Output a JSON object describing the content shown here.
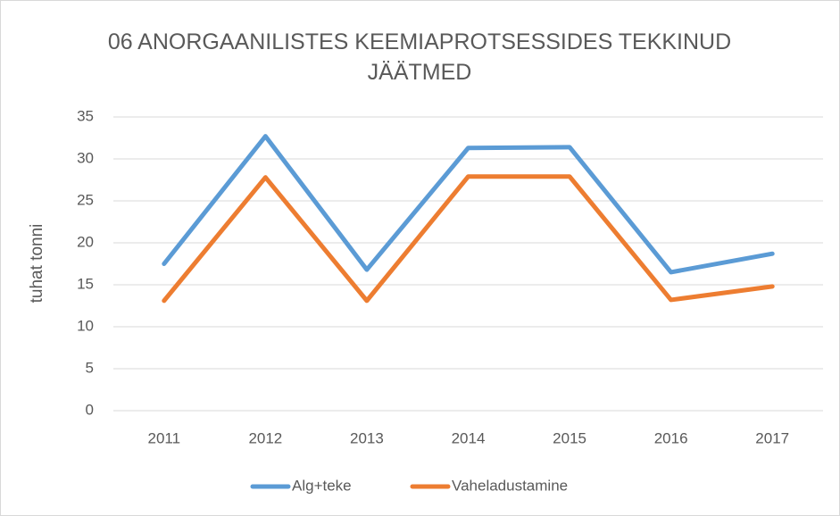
{
  "chart_data": {
    "type": "line",
    "title": "06 ANORGAANILISTES KEEMIAPROTSESSIDES TEKKINUD JÄÄTMED",
    "ylabel": "tuhat tonni",
    "categories": [
      "2011",
      "2012",
      "2013",
      "2014",
      "2015",
      "2016",
      "2017"
    ],
    "series": [
      {
        "name": "Alg+teke",
        "color": "#5b9bd5",
        "values": [
          17.5,
          32.7,
          16.8,
          31.3,
          31.4,
          16.5,
          18.7
        ]
      },
      {
        "name": "Vaheladustamine",
        "color": "#ed7d31",
        "values": [
          13.1,
          27.8,
          13.1,
          27.9,
          27.9,
          13.2,
          14.8
        ]
      }
    ],
    "ylim": [
      0,
      35
    ],
    "yticks": [
      0,
      5,
      10,
      15,
      20,
      25,
      30,
      35
    ],
    "grid": true,
    "legend": "bottom"
  }
}
